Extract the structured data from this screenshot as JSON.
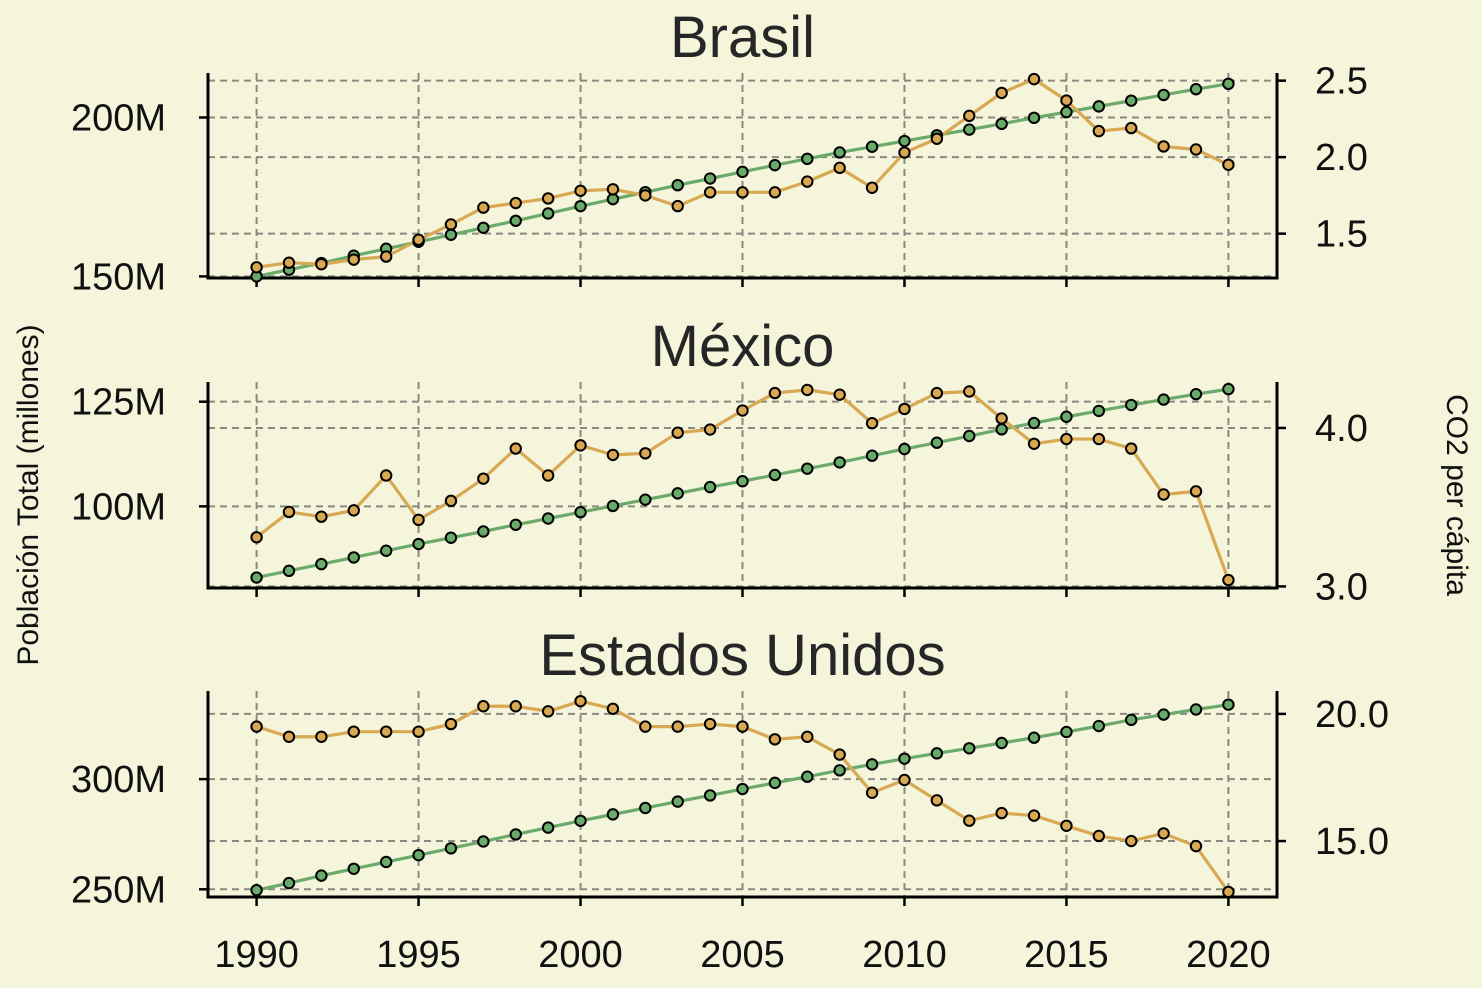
{
  "chart_data": {
    "type": "line",
    "x": [
      1990,
      1991,
      1992,
      1993,
      1994,
      1995,
      1996,
      1997,
      1998,
      1999,
      2000,
      2001,
      2002,
      2003,
      2004,
      2005,
      2006,
      2007,
      2008,
      2009,
      2010,
      2011,
      2012,
      2013,
      2014,
      2015,
      2016,
      2017,
      2018,
      2019,
      2020
    ],
    "xticks": [
      "1990",
      "1995",
      "2000",
      "2005",
      "2010",
      "2015",
      "2020"
    ],
    "xlim": [
      1988.5,
      2021.5
    ],
    "ylabel_left": "Población Total (millones)",
    "ylabel_right": "CO2 per cápita",
    "colors": {
      "population": "#6aaa6a",
      "co2": "#d9a852",
      "background": "#f5f5dc"
    },
    "grid": true,
    "panels": [
      {
        "title": "Brasil",
        "left_ticks": [
          {
            "v": 150,
            "label": "150M"
          },
          {
            "v": 200,
            "label": "200M"
          }
        ],
        "right_ticks": [
          {
            "v": 1.5,
            "label": "1.5"
          },
          {
            "v": 2.0,
            "label": "2.0"
          },
          {
            "v": 2.5,
            "label": "2.5"
          }
        ],
        "ylim_left": [
          149.5,
          214.0
        ],
        "ylim_right": [
          1.21,
          2.55
        ],
        "population": [
          150.0,
          152.1,
          154.2,
          156.5,
          158.7,
          160.9,
          163.1,
          165.3,
          167.5,
          169.8,
          172.1,
          174.3,
          176.5,
          178.7,
          180.8,
          182.9,
          185.0,
          187.0,
          189.0,
          190.8,
          192.6,
          194.4,
          196.2,
          198.0,
          199.9,
          201.7,
          203.5,
          205.3,
          207.1,
          208.9,
          210.6
        ],
        "co2": [
          1.28,
          1.31,
          1.3,
          1.33,
          1.35,
          1.46,
          1.56,
          1.67,
          1.7,
          1.73,
          1.78,
          1.79,
          1.75,
          1.68,
          1.77,
          1.77,
          1.77,
          1.84,
          1.93,
          1.8,
          2.03,
          2.12,
          2.27,
          2.42,
          2.51,
          2.37,
          2.17,
          2.19,
          2.07,
          2.05,
          1.95
        ]
      },
      {
        "title": "México",
        "left_ticks": [
          {
            "v": 100,
            "label": "100M"
          },
          {
            "v": 125,
            "label": "125M"
          }
        ],
        "right_ticks": [
          {
            "v": 3.0,
            "label": "3.0"
          },
          {
            "v": 4.0,
            "label": "4.0"
          }
        ],
        "ylim_left": [
          80.5,
          129.7
        ],
        "ylim_right": [
          2.99,
          4.29
        ],
        "population": [
          83.0,
          84.6,
          86.2,
          87.8,
          89.4,
          91.0,
          92.5,
          94.0,
          95.6,
          97.1,
          98.6,
          100.1,
          101.6,
          103.1,
          104.6,
          106.0,
          107.5,
          109.0,
          110.5,
          112.1,
          113.7,
          115.2,
          116.8,
          118.4,
          119.9,
          121.4,
          122.8,
          124.2,
          125.5,
          126.8,
          128.0
        ],
        "co2": [
          3.31,
          3.47,
          3.44,
          3.48,
          3.7,
          3.42,
          3.54,
          3.68,
          3.87,
          3.7,
          3.89,
          3.83,
          3.84,
          3.97,
          3.99,
          4.11,
          4.22,
          4.24,
          4.21,
          4.03,
          4.12,
          4.22,
          4.23,
          4.06,
          3.9,
          3.93,
          3.93,
          3.87,
          3.58,
          3.6,
          3.04
        ]
      },
      {
        "title": "Estados Unidos",
        "left_ticks": [
          {
            "v": 250,
            "label": "250M"
          },
          {
            "v": 300,
            "label": "300M"
          }
        ],
        "right_ticks": [
          {
            "v": 15.0,
            "label": "15.0"
          },
          {
            "v": 20.0,
            "label": "20.0"
          }
        ],
        "ylim_left": [
          246.5,
          340.0
        ],
        "ylim_right": [
          12.8,
          20.9
        ],
        "population": [
          249.6,
          252.8,
          256.2,
          259.3,
          262.4,
          265.5,
          268.6,
          271.7,
          274.9,
          278.0,
          281.1,
          284.0,
          286.9,
          289.8,
          292.6,
          295.5,
          298.3,
          301.1,
          304.0,
          306.7,
          309.3,
          311.7,
          314.0,
          316.4,
          318.8,
          321.4,
          324.1,
          326.9,
          329.3,
          331.6,
          333.8
        ],
        "co2": [
          19.5,
          19.1,
          19.1,
          19.3,
          19.3,
          19.3,
          19.6,
          20.3,
          20.3,
          20.1,
          20.5,
          20.2,
          19.5,
          19.5,
          19.6,
          19.5,
          19.0,
          19.1,
          18.4,
          16.9,
          17.4,
          16.6,
          15.8,
          16.1,
          16.0,
          15.6,
          15.2,
          15.0,
          15.3,
          14.8,
          13.0
        ]
      }
    ]
  }
}
